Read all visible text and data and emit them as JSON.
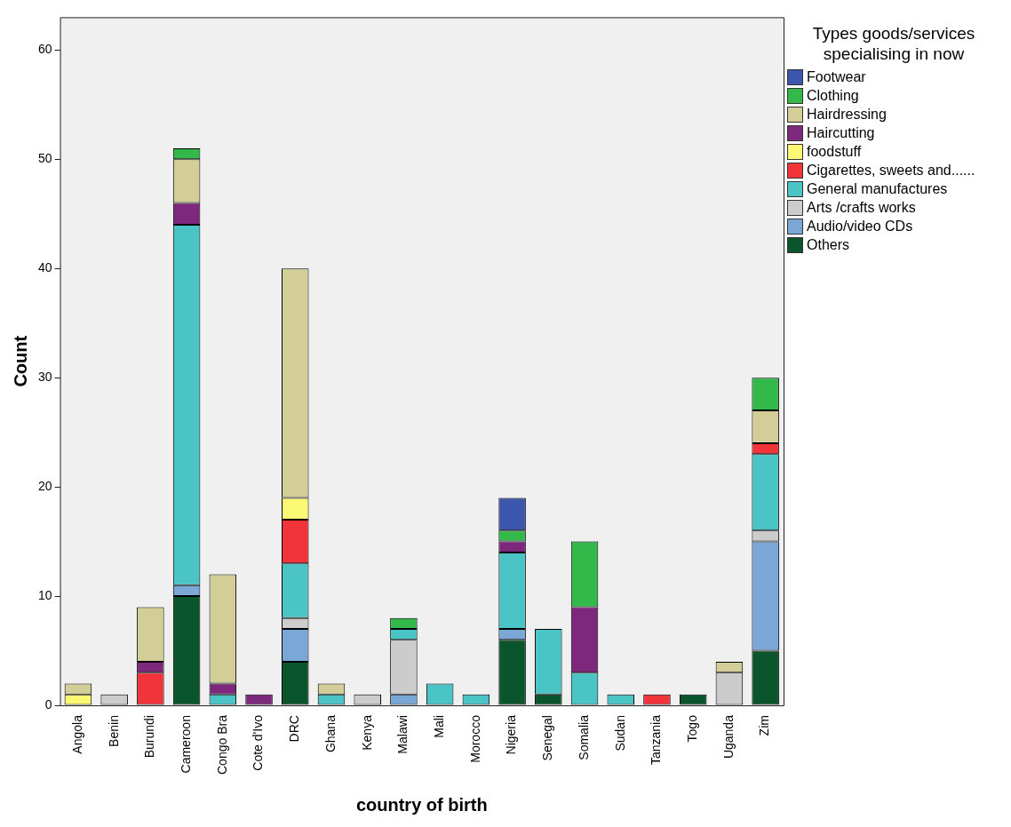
{
  "chart_data": {
    "type": "bar",
    "stacked": true,
    "xlabel": "country of birth",
    "ylabel": "Count",
    "legend_title": "Types goods/services specialising in now",
    "legend": "right",
    "grid": false,
    "categories": [
      "Angola",
      "Benin",
      "Burundi",
      "Cameroon",
      "Congo Bra",
      "Cote d'Ivo",
      "DRC",
      "Ghana",
      "Kenya",
      "Malawi",
      "Mali",
      "Morocco",
      "Nigeria",
      "Senegal",
      "Somalia",
      "Sudan",
      "Tanzania",
      "Togo",
      "Uganda",
      "Zim"
    ],
    "ylim": [
      0,
      63
    ],
    "yticks": [
      0,
      10,
      20,
      30,
      40,
      50,
      60
    ],
    "series": [
      {
        "name": "Others",
        "color": "#0b552d",
        "values": [
          null,
          null,
          null,
          10,
          null,
          null,
          4,
          null,
          null,
          null,
          null,
          null,
          6,
          1,
          null,
          null,
          null,
          1,
          null,
          5
        ]
      },
      {
        "name": "Audio/video CDs",
        "color": "#7aa7d6",
        "values": [
          null,
          null,
          null,
          1,
          null,
          null,
          3,
          null,
          null,
          1,
          null,
          null,
          1,
          null,
          null,
          null,
          null,
          null,
          null,
          10
        ]
      },
      {
        "name": "Arts /crafts works",
        "color": "#cccccc",
        "values": [
          null,
          1,
          null,
          null,
          null,
          null,
          1,
          null,
          1,
          5,
          null,
          null,
          null,
          null,
          null,
          null,
          null,
          null,
          3,
          1
        ]
      },
      {
        "name": "General manufactures",
        "color": "#4bc4c6",
        "values": [
          null,
          null,
          null,
          33,
          1,
          null,
          5,
          1,
          null,
          1,
          2,
          1,
          7,
          6,
          3,
          1,
          null,
          null,
          null,
          7
        ]
      },
      {
        "name": "Cigarettes, sweets and......",
        "color": "#f1333a",
        "values": [
          null,
          null,
          3,
          null,
          null,
          null,
          4,
          null,
          null,
          null,
          null,
          null,
          null,
          null,
          null,
          null,
          1,
          null,
          null,
          1
        ]
      },
      {
        "name": "foodstuff",
        "color": "#fbf873",
        "values": [
          1,
          null,
          null,
          null,
          null,
          null,
          2,
          null,
          null,
          null,
          null,
          null,
          null,
          null,
          null,
          null,
          null,
          null,
          null,
          null
        ]
      },
      {
        "name": "Haircutting",
        "color": "#7d287d",
        "values": [
          null,
          null,
          1,
          2,
          1,
          1,
          null,
          null,
          null,
          null,
          null,
          null,
          1,
          null,
          6,
          null,
          null,
          null,
          null,
          null
        ]
      },
      {
        "name": "Hairdressing",
        "color": "#d3ce97",
        "values": [
          1,
          null,
          5,
          4,
          10,
          null,
          21,
          1,
          null,
          null,
          null,
          null,
          null,
          null,
          null,
          null,
          null,
          null,
          1,
          3
        ]
      },
      {
        "name": "Clothing",
        "color": "#33b84a",
        "values": [
          null,
          null,
          null,
          1,
          null,
          null,
          null,
          null,
          null,
          1,
          null,
          null,
          1,
          null,
          6,
          null,
          null,
          null,
          null,
          3
        ]
      },
      {
        "name": "Footwear",
        "color": "#3c56ad",
        "values": [
          null,
          null,
          null,
          null,
          null,
          null,
          null,
          null,
          null,
          null,
          null,
          null,
          3,
          null,
          null,
          null,
          null,
          null,
          null,
          null
        ]
      }
    ]
  }
}
